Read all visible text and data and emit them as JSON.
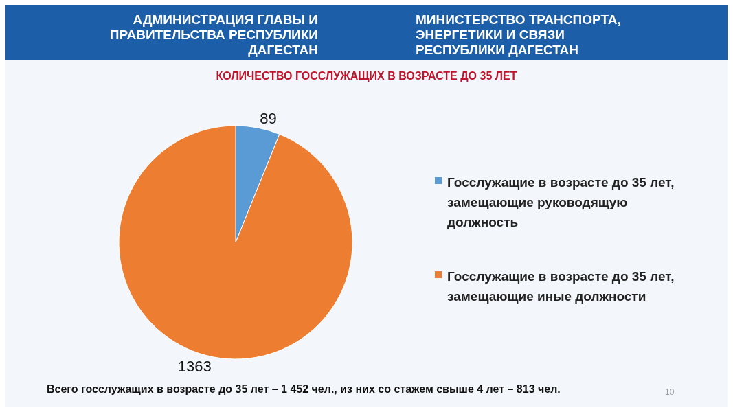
{
  "chart_data": {
    "type": "pie",
    "title": "КОЛИЧЕСТВО ГОССЛУЖАЩИХ В ВОЗРАСТЕ ДО 35 ЛЕТ",
    "categories": [
      "Госслужащие в возрасте до 35 лет, замещающие руководящую должность",
      "Госслужащие в возрасте до 35 лет, замещающие иные должности"
    ],
    "values": [
      89,
      1363
    ],
    "colors": [
      "#5b9bd5",
      "#ed7d31"
    ],
    "data_labels": true,
    "legend": "right",
    "annotations": [
      "АДМИНИСТРАЦИЯ ГЛАВЫ И ПРАВИТЕЛЬСТВА РЕСПУБЛИКИ ДАГЕСТАН",
      "МИНИСТЕРСТВО ТРАНСПОРТА, ЭНЕРГЕТИКИ И СВЯЗИ РЕСПУБЛИКИ ДАГЕСТАН",
      "Всего госслужащих в возрасте до 35 лет – 1 452 чел., из них со стажем свыше 4 лет – 813 чел.",
      "10"
    ]
  }
}
